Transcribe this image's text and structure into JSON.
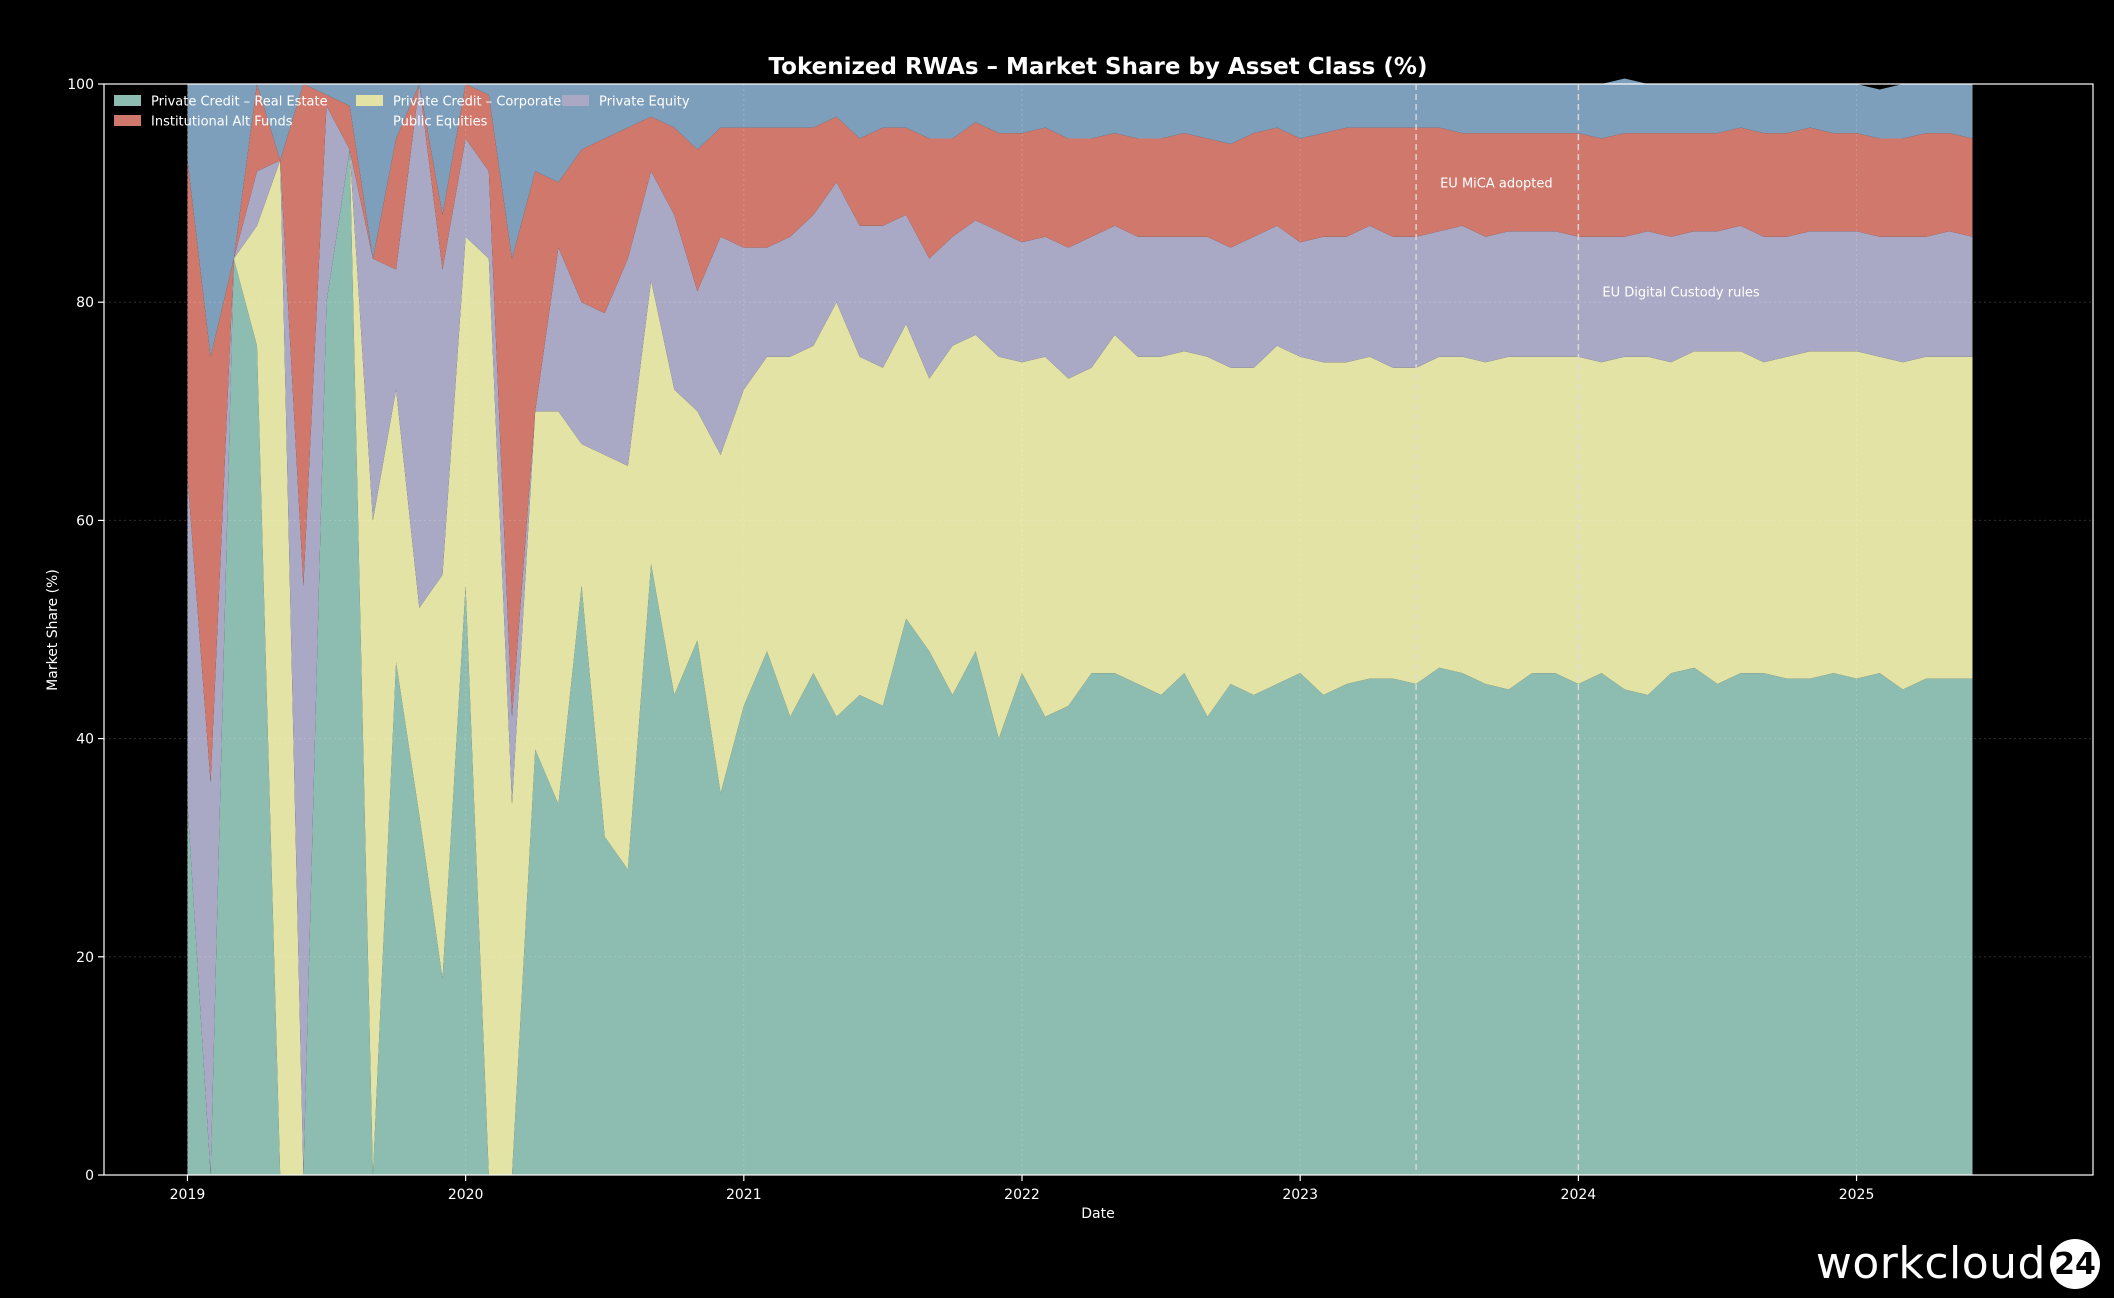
{
  "chart_data": {
    "type": "area",
    "stacked": true,
    "title": "Tokenized RWAs – Market Share by Asset Class (%)",
    "xlabel": "Date",
    "ylabel": "Market Share (%)",
    "ylim": [
      0,
      100
    ],
    "xlim": [
      2018.7,
      2025.85
    ],
    "grid": true,
    "legend_position": "top-left",
    "yticks": [
      0,
      20,
      40,
      60,
      80,
      100
    ],
    "xticks": [
      {
        "value": 2019,
        "label": "2019"
      },
      {
        "value": 2020,
        "label": "2020"
      },
      {
        "value": 2021,
        "label": "2021"
      },
      {
        "value": 2022,
        "label": "2022"
      },
      {
        "value": 2023,
        "label": "2023"
      },
      {
        "value": 2024,
        "label": "2024"
      },
      {
        "value": 2025,
        "label": "2025"
      }
    ],
    "x": [
      2019.0,
      2019.0833,
      2019.1667,
      2019.25,
      2019.3333,
      2019.4167,
      2019.5,
      2019.5833,
      2019.6667,
      2019.75,
      2019.8333,
      2019.9167,
      2020.0,
      2020.0833,
      2020.1667,
      2020.25,
      2020.3333,
      2020.4167,
      2020.5,
      2020.5833,
      2020.6667,
      2020.75,
      2020.8333,
      2020.9167,
      2021.0,
      2021.0833,
      2021.1667,
      2021.25,
      2021.3333,
      2021.4167,
      2021.5,
      2021.5833,
      2021.6667,
      2021.75,
      2021.8333,
      2021.9167,
      2022.0,
      2022.0833,
      2022.1667,
      2022.25,
      2022.3333,
      2022.4167,
      2022.5,
      2022.5833,
      2022.6667,
      2022.75,
      2022.8333,
      2022.9167,
      2023.0,
      2023.0833,
      2023.1667,
      2023.25,
      2023.3333,
      2023.4167,
      2023.5,
      2023.5833,
      2023.6667,
      2023.75,
      2023.8333,
      2023.9167,
      2024.0,
      2024.0833,
      2024.1667,
      2024.25,
      2024.3333,
      2024.4167,
      2024.5,
      2024.5833,
      2024.6667,
      2024.75,
      2024.8333,
      2024.9167,
      2025.0,
      2025.0833,
      2025.1667,
      2025.25,
      2025.3333,
      2025.4167
    ],
    "series": [
      {
        "name": "Private Credit – Real Estate",
        "color": "#8dbcb0",
        "values": [
          34,
          0,
          84,
          76,
          0,
          0,
          80,
          94,
          0,
          47,
          33,
          18,
          54,
          0,
          0,
          39,
          34,
          54,
          31,
          28,
          56,
          44,
          49,
          35,
          43,
          48,
          42,
          46,
          42,
          44,
          43,
          51,
          48,
          44,
          48,
          40,
          46,
          42,
          43,
          46,
          46,
          45,
          44,
          46,
          42,
          45,
          44,
          45,
          46,
          44,
          45,
          45.5,
          45.5,
          45,
          46.5,
          46,
          45,
          44.5,
          46,
          46,
          45,
          46,
          44.5,
          44,
          46,
          46.5,
          45,
          46,
          46,
          45.5,
          45.5,
          46,
          45.5,
          46,
          44.5,
          45.5,
          45.5,
          45.5
        ]
      },
      {
        "name": "Private Credit – Corporate",
        "color": "#e3e3a6",
        "values": [
          0,
          0,
          0,
          11,
          93,
          0,
          0,
          0,
          60,
          25,
          19,
          37,
          32,
          84,
          34,
          31,
          36,
          13,
          35,
          37,
          26,
          28,
          21,
          31,
          29,
          27,
          33,
          30,
          38,
          31,
          31,
          27,
          25,
          32,
          29,
          35,
          28.5,
          33,
          30,
          28,
          31,
          30,
          31,
          29.5,
          33,
          29,
          30,
          31,
          29,
          30.5,
          29.5,
          29.5,
          28.5,
          29,
          28.5,
          29,
          29.5,
          30.5,
          29,
          29,
          30,
          28.5,
          30.5,
          31,
          28.5,
          29,
          30.5,
          29.5,
          28.5,
          29.5,
          30,
          29.5,
          30,
          29,
          30,
          29.5,
          29.5,
          29.5
        ]
      },
      {
        "name": "Private Equity",
        "color": "#aaa9c5",
        "values": [
          30,
          36,
          0,
          5,
          0,
          54,
          18,
          0,
          24,
          11,
          48,
          28,
          9,
          8,
          8,
          0,
          15,
          13,
          13,
          19,
          10,
          16,
          11,
          20,
          13,
          10,
          11,
          12,
          11,
          12,
          13,
          10,
          11,
          10,
          10.5,
          11.5,
          11,
          11,
          12,
          12,
          10,
          11,
          11,
          10.5,
          11,
          11,
          12,
          11,
          10.5,
          11.5,
          11.5,
          12,
          12,
          12,
          11.5,
          12,
          11.5,
          11.5,
          11.5,
          11.5,
          11,
          11.5,
          11,
          11.5,
          11.5,
          11,
          11,
          11.5,
          11.5,
          11,
          11,
          11,
          11,
          11,
          11.5,
          11,
          11.5,
          11
        ]
      },
      {
        "name": "Institutional Alt Funds",
        "color": "#d0786c",
        "values": [
          29,
          39,
          0,
          8,
          0,
          46,
          1,
          4,
          0,
          12,
          0,
          5,
          5,
          7,
          42,
          22,
          6,
          14,
          16,
          12,
          5,
          8,
          13,
          10,
          11,
          11,
          10,
          8,
          6,
          8,
          9,
          8,
          11,
          9,
          9,
          9,
          10,
          10,
          10,
          9,
          8.5,
          9,
          9,
          9.5,
          9,
          9.5,
          9.5,
          9,
          9.5,
          9.5,
          10,
          9,
          10,
          10,
          9.5,
          8.5,
          9.5,
          9,
          9,
          9,
          9.5,
          9,
          9.5,
          9,
          9.5,
          9,
          9,
          9,
          9.5,
          9.5,
          9.5,
          9,
          9,
          9,
          9,
          9.5,
          9,
          9
        ]
      },
      {
        "name": "Public Equities",
        "color": "#7e9fbb",
        "values": [
          7,
          25,
          16,
          0,
          7,
          0,
          1,
          2,
          16,
          5,
          0,
          12,
          0,
          1,
          16,
          8,
          9,
          6,
          5,
          4,
          3,
          4,
          6,
          4,
          4,
          4,
          4,
          4,
          3,
          5,
          4,
          4,
          5,
          5,
          3.5,
          4.5,
          4.5,
          4,
          5,
          5,
          4.5,
          5,
          5,
          4.5,
          5,
          5.5,
          4.5,
          4,
          5,
          4.5,
          4,
          4,
          4,
          4,
          4,
          4.5,
          4.5,
          4.5,
          4.5,
          4.5,
          4.5,
          5,
          5,
          4.5,
          4.5,
          4.5,
          4.5,
          4,
          4.5,
          4.5,
          4,
          4.5,
          4.5,
          4.5,
          5,
          4.5,
          4.5,
          5
        ]
      }
    ],
    "annotations": [
      {
        "x": 2023.4167,
        "label": "EU MiCA adopted",
        "y": 90.5
      },
      {
        "x": 2024.0,
        "label": "EU Digital Custody rules",
        "y": 80.5
      }
    ]
  },
  "watermark": {
    "text": "workcloud",
    "badge": "24"
  }
}
